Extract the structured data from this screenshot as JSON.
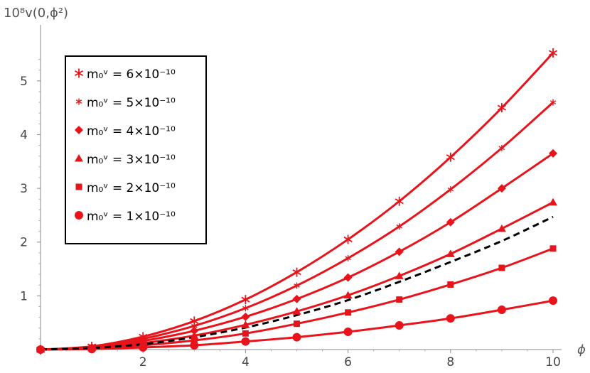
{
  "chart_data": {
    "type": "line",
    "xlabel": "ϕ",
    "ylabel": "10⁸v(0,ϕ²)",
    "xlim": [
      0,
      10
    ],
    "ylim": [
      0,
      5.8
    ],
    "x_ticks": [
      2,
      4,
      6,
      8,
      10
    ],
    "y_ticks": [
      1,
      2,
      3,
      4,
      5
    ],
    "grid": false,
    "legend_position": "top-left",
    "colors": {
      "series": "#e8141b",
      "reference": "#000000"
    },
    "x": [
      0,
      1,
      2,
      3,
      4,
      5,
      6,
      7,
      8,
      9,
      10
    ],
    "series": [
      {
        "name": "m₀ᵛ = 6×10⁻¹⁰",
        "marker": "star6",
        "values": [
          0,
          0.06,
          0.24,
          0.53,
          0.93,
          1.44,
          2.05,
          2.76,
          3.58,
          4.5,
          5.52
        ]
      },
      {
        "name": "m₀ᵛ = 5×10⁻¹⁰",
        "marker": "star-small",
        "values": [
          0,
          0.05,
          0.2,
          0.44,
          0.77,
          1.19,
          1.7,
          2.29,
          2.98,
          3.75,
          4.6
        ]
      },
      {
        "name": "m₀ᵛ = 4×10⁻¹⁰",
        "marker": "diamond",
        "values": [
          0,
          0.04,
          0.16,
          0.35,
          0.61,
          0.94,
          1.34,
          1.82,
          2.37,
          3.0,
          3.65
        ]
      },
      {
        "name": "m₀ᵛ = 3×10⁻¹⁰",
        "marker": "triangle",
        "values": [
          0,
          0.03,
          0.12,
          0.26,
          0.46,
          0.71,
          1.01,
          1.37,
          1.78,
          2.25,
          2.74
        ]
      },
      {
        "name": "m₀ᵛ = 2×10⁻¹⁰",
        "marker": "square",
        "values": [
          0,
          0.02,
          0.08,
          0.17,
          0.3,
          0.48,
          0.69,
          0.93,
          1.21,
          1.52,
          1.88
        ]
      },
      {
        "name": "m₀ᵛ = 1×10⁻¹⁰",
        "marker": "circle",
        "values": [
          0,
          0.01,
          0.04,
          0.08,
          0.15,
          0.23,
          0.33,
          0.45,
          0.58,
          0.74,
          0.91
        ]
      }
    ],
    "reference_curve": {
      "style": "dashed",
      "x": [
        0,
        1,
        2,
        3,
        4,
        5,
        6,
        7,
        8,
        9,
        10
      ],
      "values": [
        0,
        0.03,
        0.1,
        0.23,
        0.41,
        0.64,
        0.92,
        1.26,
        1.63,
        2.02,
        2.47
      ]
    }
  }
}
